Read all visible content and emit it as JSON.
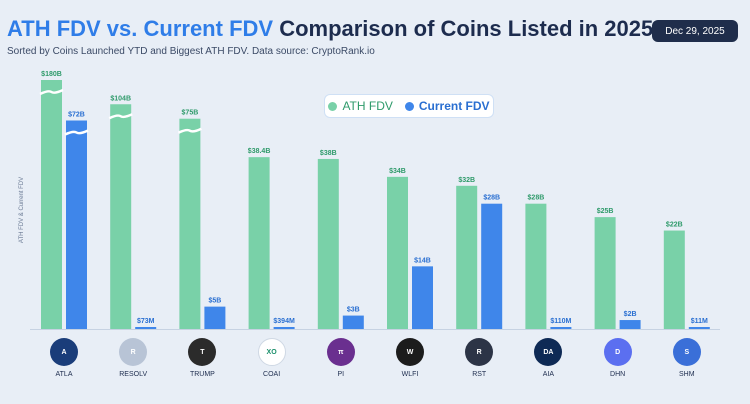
{
  "header": {
    "title_part1": "ATH FDV vs. Current FDV",
    "title_part2": "Comparison of Coins Listed in 2025",
    "subtitle": "Sorted by Coins Launched YTD and Biggest ATH FDV. Data source: CryptoRank.io",
    "date": "Dec 29, 2025"
  },
  "colors": {
    "ath": "#79d1a8",
    "current": "#3f86ea",
    "ath_text": "#2e9a6a",
    "current_text": "#2a6fd1"
  },
  "chart_data": {
    "type": "bar",
    "title": "ATH FDV vs. Current FDV Comparison of Coins Listed in 2025",
    "ylabel": "ATH FDV & Current FDV",
    "axis_break": "broken bars for ATLA, RESOLV, TRUMP (ATH) and ATLA (Current)",
    "legend_position": "top-center",
    "categories": [
      "ATLA",
      "RESOLV",
      "TRUMP",
      "COAI",
      "PI",
      "WLFI",
      "RST",
      "AIA",
      "DHN",
      "SHM"
    ],
    "series": [
      {
        "name": "ATH FDV",
        "values": [
          180000000000,
          104000000000,
          75000000000,
          38400000000,
          38000000000,
          34000000000,
          32000000000,
          28000000000,
          25000000000,
          22000000000
        ],
        "labels": [
          "$180B",
          "$104B",
          "$75B",
          "$38.4B",
          "$38B",
          "$34B",
          "$32B",
          "$28B",
          "$25B",
          "$22B"
        ]
      },
      {
        "name": "Current FDV",
        "values": [
          72000000000,
          73000000,
          5000000000,
          394000000,
          3000000000,
          14000000000,
          28000000000,
          110000000,
          2000000000,
          11000000
        ],
        "labels": [
          "$72B",
          "$73M",
          "$5B",
          "$394M",
          "$3B",
          "$14B",
          "$28B",
          "$110M",
          "$2B",
          "$11M"
        ]
      }
    ]
  },
  "coins": [
    {
      "name": "ATLA",
      "icon": "atla-icon",
      "bg": "#1a3d7a",
      "glyph": "A"
    },
    {
      "name": "RESOLV",
      "icon": "resolv-icon",
      "bg": "#b8c4d6",
      "glyph": "R"
    },
    {
      "name": "TRUMP",
      "icon": "trump-icon",
      "bg": "#2b2b2b",
      "glyph": "T"
    },
    {
      "name": "COAI",
      "icon": "coai-icon",
      "bg": "#ffffff",
      "glyph": "XO"
    },
    {
      "name": "PI",
      "icon": "pi-icon",
      "bg": "#6a2f8f",
      "glyph": "π"
    },
    {
      "name": "WLFI",
      "icon": "wlfi-icon",
      "bg": "#1c1c1c",
      "glyph": "W"
    },
    {
      "name": "RST",
      "icon": "rst-icon",
      "bg": "#2c3446",
      "glyph": "R"
    },
    {
      "name": "AIA",
      "icon": "aia-icon",
      "bg": "#0e2a55",
      "glyph": "DA"
    },
    {
      "name": "DHN",
      "icon": "dhn-icon",
      "bg": "#5b6ff0",
      "glyph": "D"
    },
    {
      "name": "SHM",
      "icon": "shm-icon",
      "bg": "#3a6fd8",
      "glyph": "S"
    }
  ]
}
